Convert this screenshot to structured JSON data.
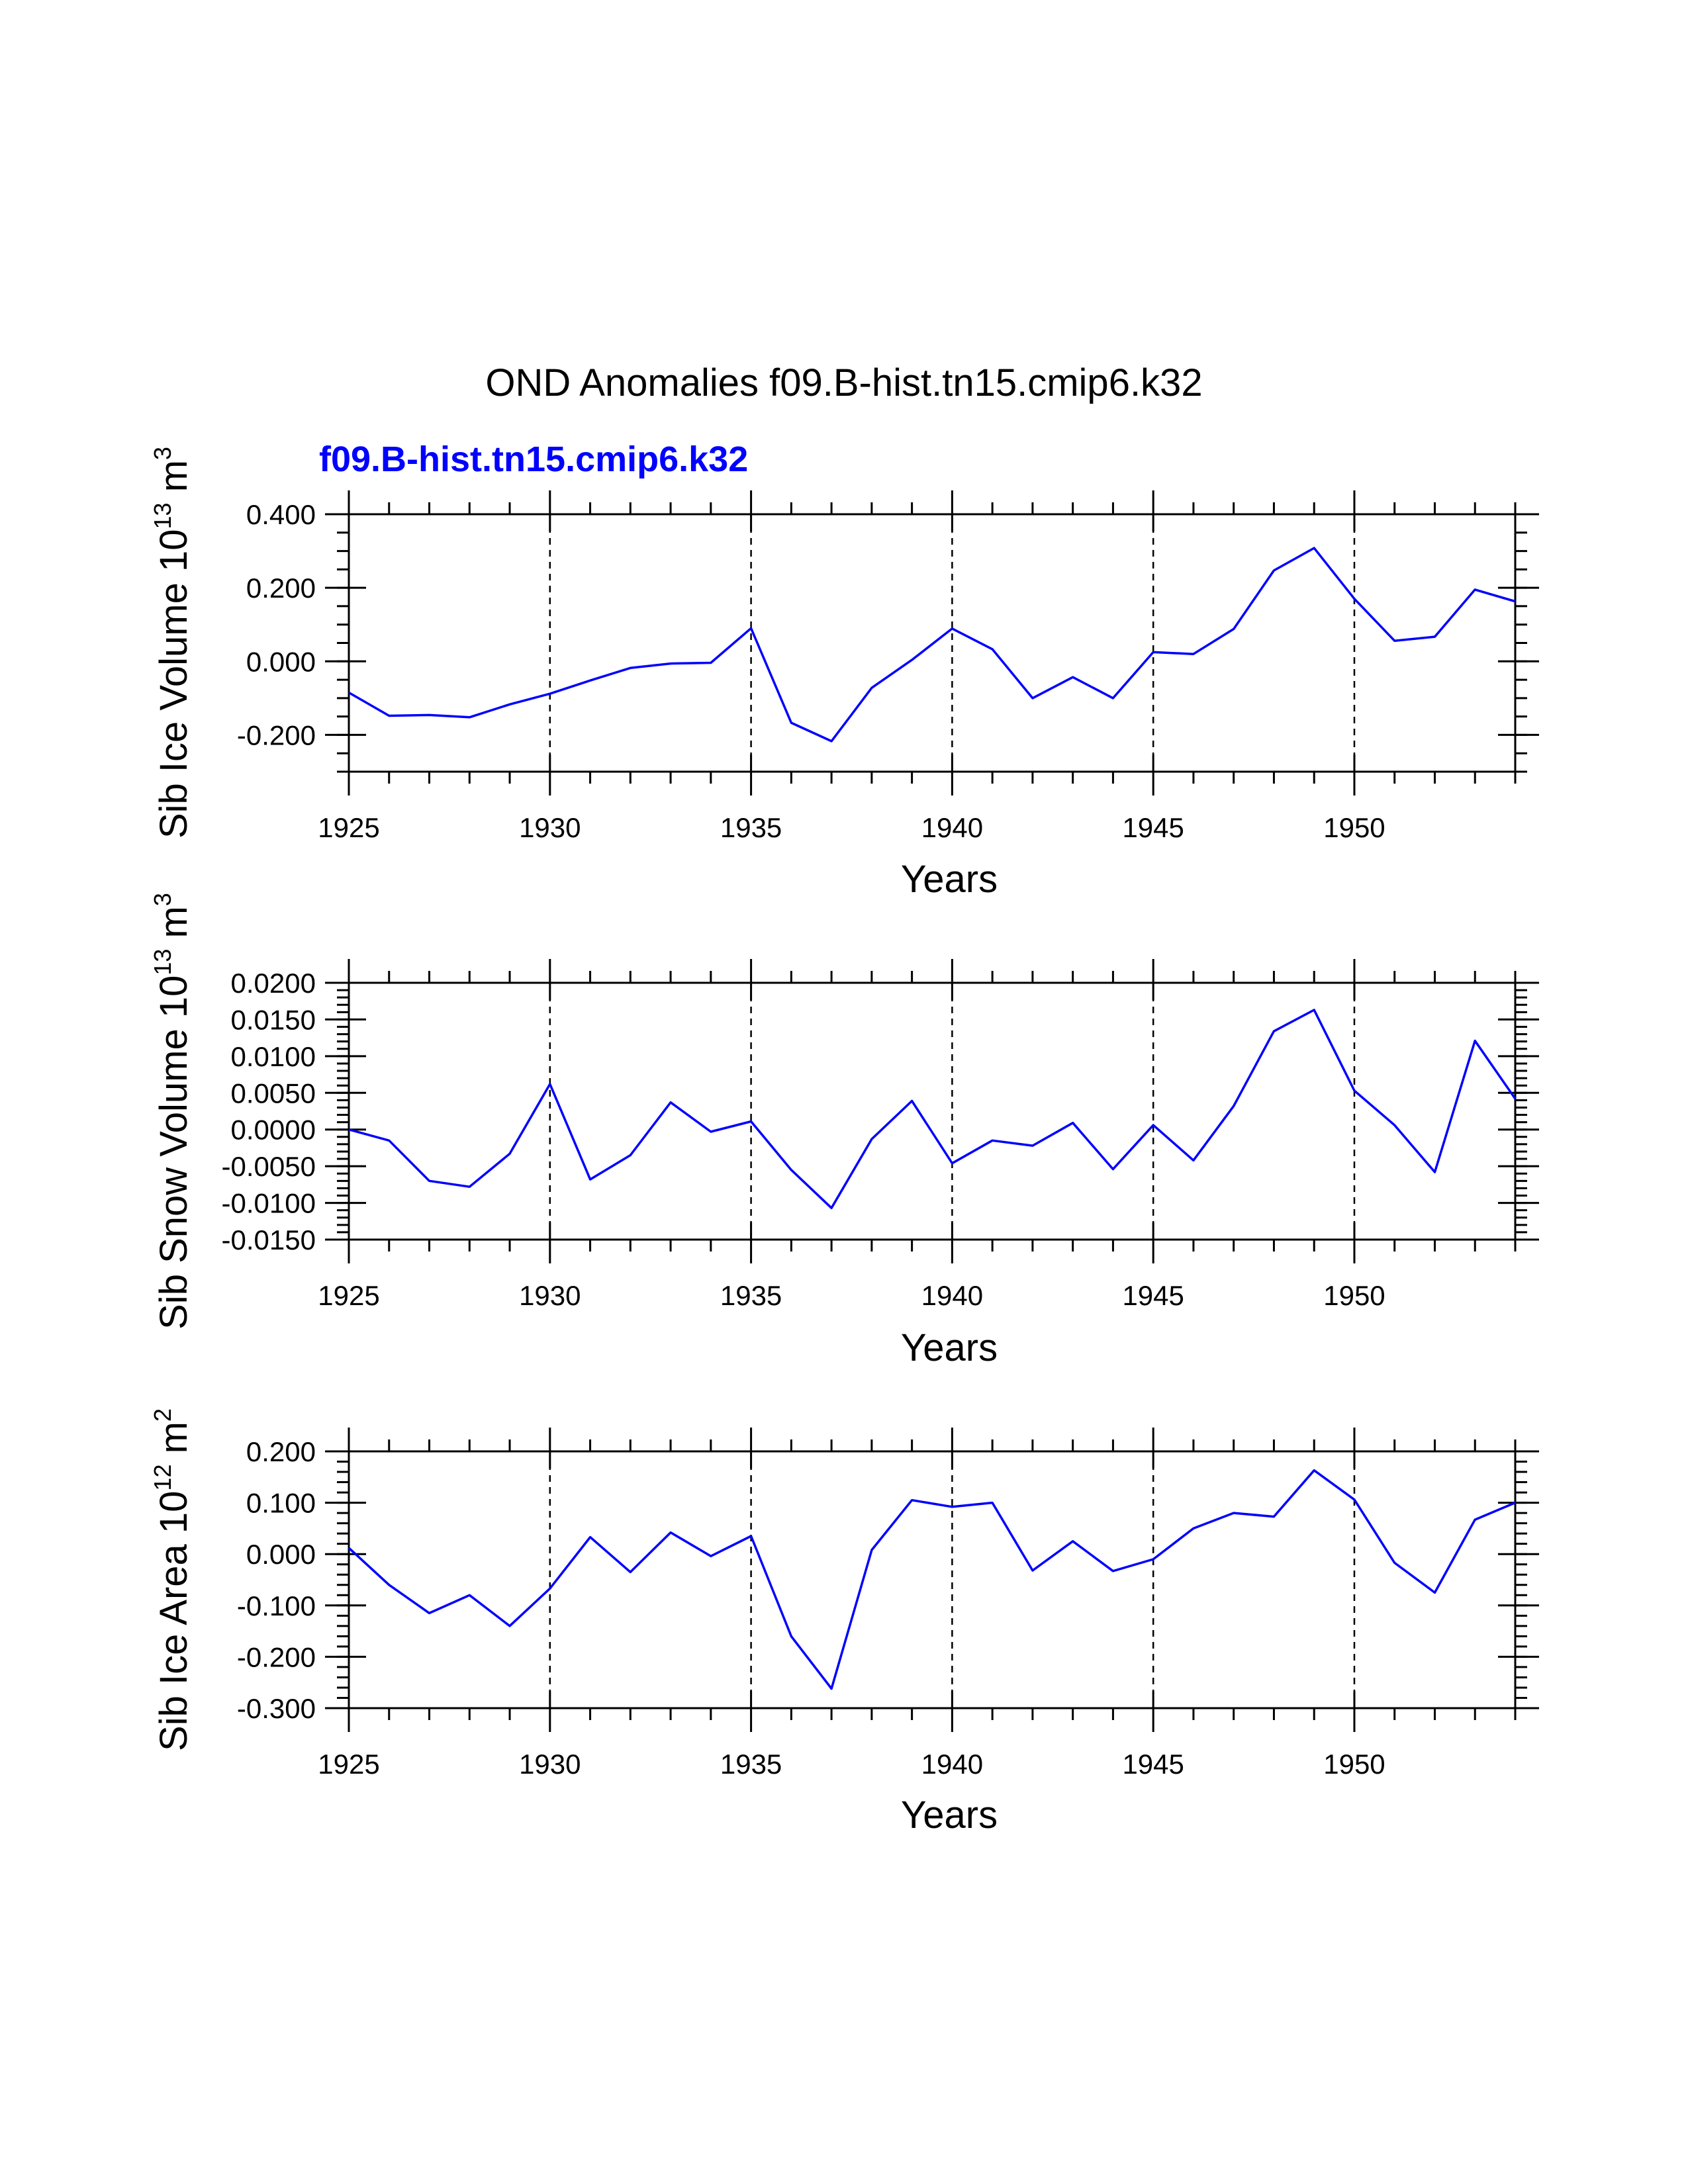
{
  "figure": {
    "title": "OND Anomalies f09.B-hist.tn15.cmip6.k32",
    "subtitle": "f09.B-hist.tn15.cmip6.k32",
    "subtitle_color": "#0000ff",
    "line_color": "#0000ff"
  },
  "chart_data": [
    {
      "type": "line",
      "ylabel_main": "Sib Ice Volume 10",
      "ylabel_exp": "13",
      "ylabel_unit": "m",
      "ylabel_unit_exp": "3",
      "xlabel": "Years",
      "xlim": [
        1925,
        1954
      ],
      "ylim": [
        -0.3,
        0.4
      ],
      "yticks": [
        -0.2,
        0.0,
        0.2,
        0.4
      ],
      "ytick_labels": [
        "-0.200",
        "0.000",
        "0.200",
        "0.400"
      ],
      "yminor_step": 0.05,
      "xticks": [
        1925,
        1930,
        1935,
        1940,
        1945,
        1950
      ],
      "xtick_labels": [
        "1925",
        "1930",
        "1935",
        "1940",
        "1945",
        "1950"
      ],
      "grid_x": [
        1930,
        1935,
        1940,
        1945,
        1950
      ],
      "series": [
        {
          "name": "f09.B-hist.tn15.cmip6.k32",
          "x": [
            1925,
            1926,
            1927,
            1928,
            1929,
            1930,
            1931,
            1932,
            1933,
            1934,
            1935,
            1936,
            1937,
            1938,
            1939,
            1940,
            1941,
            1942,
            1943,
            1944,
            1945,
            1946,
            1947,
            1948,
            1949,
            1950,
            1951,
            1952,
            1953,
            1954
          ],
          "values": [
            -0.085,
            -0.148,
            -0.146,
            -0.152,
            -0.117,
            -0.088,
            -0.052,
            -0.018,
            -0.006,
            -0.004,
            0.09,
            -0.167,
            -0.217,
            -0.072,
            0.004,
            0.089,
            0.033,
            -0.1,
            -0.043,
            -0.1,
            0.025,
            0.02,
            0.088,
            0.247,
            0.308,
            0.17,
            0.056,
            0.067,
            0.195,
            0.163
          ]
        }
      ]
    },
    {
      "type": "line",
      "ylabel_main": "Sib Snow Volume 10",
      "ylabel_exp": "13",
      "ylabel_unit": "m",
      "ylabel_unit_exp": "3",
      "xlabel": "Years",
      "xlim": [
        1925,
        1954
      ],
      "ylim": [
        -0.015,
        0.02
      ],
      "yticks": [
        -0.015,
        -0.01,
        -0.005,
        0.0,
        0.005,
        0.01,
        0.015,
        0.02
      ],
      "ytick_labels": [
        "-0.0150",
        "-0.0100",
        "-0.0050",
        "0.0000",
        "0.0050",
        "0.0100",
        "0.0150",
        "0.0200"
      ],
      "yminor_step": 0.001,
      "xticks": [
        1925,
        1930,
        1935,
        1940,
        1945,
        1950
      ],
      "xtick_labels": [
        "1925",
        "1930",
        "1935",
        "1940",
        "1945",
        "1950"
      ],
      "grid_x": [
        1930,
        1935,
        1940,
        1945,
        1950
      ],
      "series": [
        {
          "name": "f09.B-hist.tn15.cmip6.k32",
          "x": [
            1925,
            1926,
            1927,
            1928,
            1929,
            1930,
            1931,
            1932,
            1933,
            1934,
            1935,
            1936,
            1937,
            1938,
            1939,
            1940,
            1941,
            1942,
            1943,
            1944,
            1945,
            1946,
            1947,
            1948,
            1949,
            1950,
            1951,
            1952,
            1953,
            1954
          ],
          "values": [
            0.0,
            -0.0015,
            -0.007,
            -0.0078,
            -0.0033,
            0.0062,
            -0.0068,
            -0.0035,
            0.0037,
            -0.0003,
            0.0011,
            -0.0055,
            -0.0107,
            -0.0013,
            0.0039,
            -0.0046,
            -0.0015,
            -0.0022,
            0.0009,
            -0.0054,
            0.0006,
            -0.0042,
            0.0032,
            0.0134,
            0.0163,
            0.0053,
            0.0006,
            -0.0058,
            0.0121,
            0.0042
          ]
        }
      ]
    },
    {
      "type": "line",
      "ylabel_main": "Sib Ice Area 10",
      "ylabel_exp": "12",
      "ylabel_unit": "m",
      "ylabel_unit_exp": "2",
      "xlabel": "Years",
      "xlim": [
        1925,
        1954
      ],
      "ylim": [
        -0.3,
        0.2
      ],
      "yticks": [
        -0.3,
        -0.2,
        -0.1,
        0.0,
        0.1,
        0.2
      ],
      "ytick_labels": [
        "-0.300",
        "-0.200",
        "-0.100",
        "0.000",
        "0.100",
        "0.200"
      ],
      "yminor_step": 0.02,
      "xticks": [
        1925,
        1930,
        1935,
        1940,
        1945,
        1950
      ],
      "xtick_labels": [
        "1925",
        "1930",
        "1935",
        "1940",
        "1945",
        "1950"
      ],
      "grid_x": [
        1930,
        1935,
        1940,
        1945,
        1950
      ],
      "series": [
        {
          "name": "f09.B-hist.tn15.cmip6.k32",
          "x": [
            1925,
            1926,
            1927,
            1928,
            1929,
            1930,
            1931,
            1932,
            1933,
            1934,
            1935,
            1936,
            1937,
            1938,
            1939,
            1940,
            1941,
            1942,
            1943,
            1944,
            1945,
            1946,
            1947,
            1948,
            1949,
            1950,
            1951,
            1952,
            1953,
            1954
          ],
          "values": [
            0.012,
            -0.06,
            -0.115,
            -0.08,
            -0.14,
            -0.067,
            0.033,
            -0.035,
            0.042,
            -0.004,
            0.035,
            -0.16,
            -0.262,
            0.008,
            0.105,
            0.092,
            0.1,
            -0.032,
            0.025,
            -0.033,
            -0.01,
            0.05,
            0.08,
            0.073,
            0.163,
            0.106,
            -0.017,
            -0.075,
            0.067,
            0.1
          ]
        }
      ]
    }
  ]
}
